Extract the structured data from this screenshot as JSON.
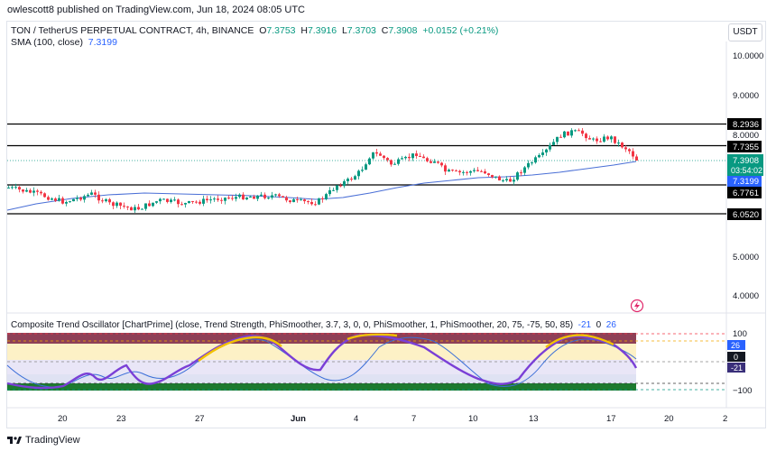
{
  "publish_line": "owlescott8 published on TradingView.com, Jun 18, 2024 08:05 UTC",
  "symbol": {
    "name": "TON / TetherUS PERPETUAL CONTRACT, 4h, BINANCE",
    "o_label": "O",
    "o": "7.3753",
    "h_label": "H",
    "h": "7.3916",
    "l_label": "L",
    "l": "7.3703",
    "c_label": "C",
    "c": "7.3908",
    "change": "+0.0152 (+0.21%)"
  },
  "sma": {
    "label": "SMA (100, close)",
    "value": "7.3199"
  },
  "currency": "USDT",
  "price_axis": {
    "ticks": [
      "10.0000",
      "9.0000",
      "8.0000",
      "5.0000",
      "4.0000"
    ],
    "levels": [
      "8.2936",
      "7.7355",
      "6.7761",
      "6.0520"
    ],
    "current_price": "7.3908",
    "countdown": "03:54:02",
    "sma_value": "7.3199"
  },
  "oscillator": {
    "title": "Composite Trend Oscillator [ChartPrime] (close, Trend Strength, PhiSmoother, 3.7, 3, 0, 0, PhiSmoother, 1, PhiSmoother, 20, 75, -75, 50, 85)",
    "v1": "-21",
    "v2": "0",
    "v3": "26",
    "axis": [
      "100",
      "−100"
    ],
    "badges": [
      "26",
      "0",
      "-21"
    ]
  },
  "time_axis": [
    "20",
    "23",
    "27",
    "Jun",
    "4",
    "7",
    "10",
    "13",
    "17",
    "20",
    "2"
  ],
  "footer_logo": "TradingView",
  "colors": {
    "up": "#089981",
    "down": "#f23645",
    "sma": "#2962ff",
    "level": "#000000"
  }
}
